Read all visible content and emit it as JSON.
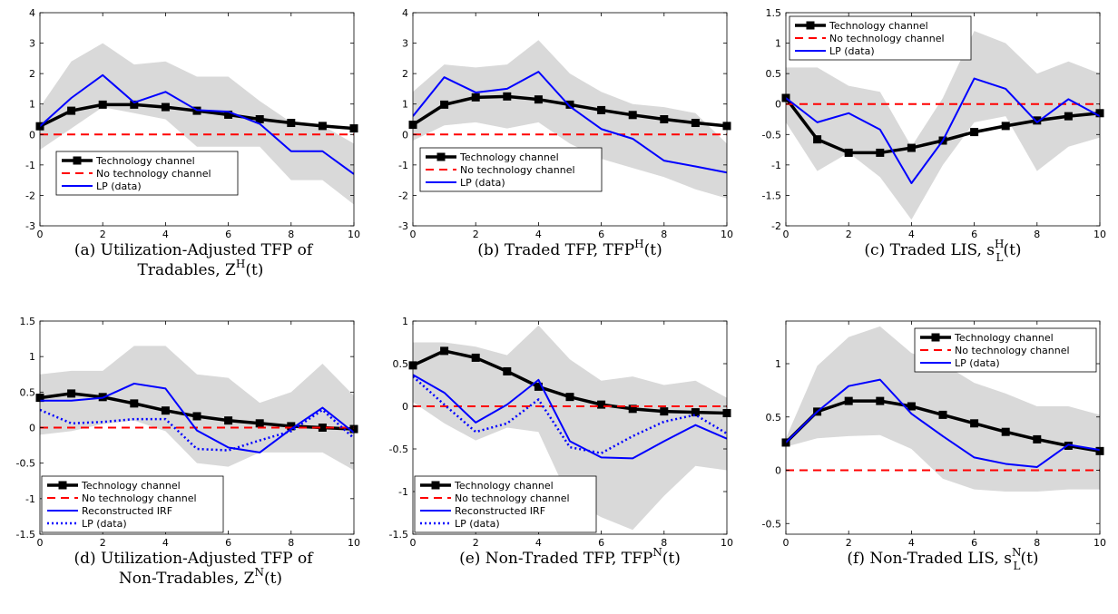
{
  "colors": {
    "technology": "#000000",
    "no_technology": "#ff0000",
    "lp": "#0000ff",
    "band": "#d9d9d9"
  },
  "chart_data": [
    {
      "type": "line",
      "caption": "(a)  Utilization-Adjusted TFP of Tradables, Z^H(t)",
      "caption_lines": [
        "(a)  Utilization-Adjusted TFP of",
        "Tradables, Z",
        "H",
        "(t)"
      ],
      "x": [
        0,
        1,
        2,
        3,
        4,
        5,
        6,
        7,
        8,
        9,
        10
      ],
      "xlim": [
        0,
        10
      ],
      "ylim": [
        -3,
        4
      ],
      "xticks": [
        0,
        2,
        4,
        6,
        8,
        10
      ],
      "yticks": [
        -3,
        -2,
        -1,
        0,
        1,
        2,
        3,
        4
      ],
      "xticklabels": [
        "0",
        "2",
        "4",
        "6",
        "8",
        "10"
      ],
      "yticklabels": [
        "-3",
        "-2",
        "-1",
        "0",
        "1",
        "2",
        "3",
        "4"
      ],
      "band": {
        "lower": [
          -0.5,
          0.2,
          0.9,
          0.7,
          0.5,
          -0.4,
          -0.4,
          -0.4,
          -1.5,
          -1.5,
          -2.3
        ],
        "upper": [
          0.9,
          2.4,
          3.0,
          2.3,
          2.4,
          1.9,
          1.9,
          1.1,
          0.4,
          0.3,
          -0.3
        ]
      },
      "legend_position": "bottom-left",
      "series": [
        {
          "name": "Technology channel",
          "style": "technology",
          "values": [
            0.27,
            0.78,
            0.98,
            0.98,
            0.9,
            0.78,
            0.65,
            0.5,
            0.38,
            0.28,
            0.2
          ]
        },
        {
          "name": "No technology channel",
          "style": "no_technology",
          "values": [
            0,
            0,
            0,
            0,
            0,
            0,
            0,
            0,
            0,
            0,
            0
          ]
        },
        {
          "name": "LP (data)",
          "style": "lp",
          "values": [
            0.27,
            1.2,
            1.95,
            1.05,
            1.4,
            0.8,
            0.75,
            0.35,
            -0.55,
            -0.55,
            -1.3
          ]
        }
      ]
    },
    {
      "type": "line",
      "caption": "(b)  Traded TFP, TFP^H(t)",
      "caption_lines": [
        "(b)  Traded TFP, TFP",
        "H",
        "(t)"
      ],
      "x": [
        0,
        1,
        2,
        3,
        4,
        5,
        6,
        7,
        8,
        9,
        10
      ],
      "xlim": [
        0,
        10
      ],
      "ylim": [
        -3,
        4
      ],
      "xticks": [
        0,
        2,
        4,
        6,
        8,
        10
      ],
      "yticks": [
        -3,
        -2,
        -1,
        0,
        1,
        2,
        3,
        4
      ],
      "xticklabels": [
        "0",
        "2",
        "4",
        "6",
        "8",
        "10"
      ],
      "yticklabels": [
        "-3",
        "-2",
        "-1",
        "0",
        "1",
        "2",
        "3",
        "4"
      ],
      "band": {
        "lower": [
          -0.2,
          0.3,
          0.4,
          0.2,
          0.4,
          -0.3,
          -0.8,
          -1.1,
          -1.4,
          -1.8,
          -2.1
        ],
        "upper": [
          1.4,
          2.3,
          2.2,
          2.3,
          3.1,
          2.0,
          1.4,
          1.0,
          0.9,
          0.7,
          -0.3
        ]
      },
      "legend_position": "bottom-left",
      "series": [
        {
          "name": "Technology channel",
          "style": "technology",
          "values": [
            0.32,
            0.98,
            1.22,
            1.25,
            1.15,
            0.98,
            0.8,
            0.64,
            0.5,
            0.38,
            0.28
          ]
        },
        {
          "name": "No technology channel",
          "style": "no_technology",
          "values": [
            0,
            0,
            0,
            0,
            0,
            0,
            0,
            0,
            0,
            0,
            0
          ]
        },
        {
          "name": "LP (data)",
          "style": "lp",
          "values": [
            0.6,
            1.88,
            1.38,
            1.5,
            2.06,
            0.92,
            0.18,
            -0.14,
            -0.86,
            -1.05,
            -1.25
          ]
        }
      ]
    },
    {
      "type": "line",
      "caption": "(c)  Traded LIS, s_L^H(t)",
      "caption_lines": [
        "(c)  Traded LIS, s",
        "H",
        "L",
        "(t)"
      ],
      "x": [
        0,
        1,
        2,
        3,
        4,
        5,
        6,
        7,
        8,
        9,
        10
      ],
      "xlim": [
        0,
        10
      ],
      "ylim": [
        -2,
        1.5
      ],
      "xticks": [
        0,
        2,
        4,
        6,
        8,
        10
      ],
      "yticks": [
        -2,
        -1.5,
        -1,
        -0.5,
        0,
        0.5,
        1,
        1.5
      ],
      "xticklabels": [
        "0",
        "2",
        "4",
        "6",
        "8",
        "10"
      ],
      "yticklabels": [
        "-2",
        "-1.5",
        "-1",
        "-0.5",
        "0",
        "0.5",
        "1",
        "1.5"
      ],
      "band": {
        "lower": [
          -0.3,
          -1.1,
          -0.8,
          -1.2,
          -1.9,
          -1.0,
          -0.3,
          -0.2,
          -1.1,
          -0.7,
          -0.55
        ],
        "upper": [
          0.6,
          0.6,
          0.3,
          0.2,
          -0.7,
          0.1,
          1.2,
          1.0,
          0.5,
          0.7,
          0.5
        ]
      },
      "legend_position": "top-left",
      "series": [
        {
          "name": "Technology channel",
          "style": "technology",
          "values": [
            0.1,
            -0.58,
            -0.8,
            -0.8,
            -0.72,
            -0.6,
            -0.46,
            -0.36,
            -0.27,
            -0.2,
            -0.15
          ]
        },
        {
          "name": "No technology channel",
          "style": "no_technology",
          "values": [
            0,
            0,
            0,
            0,
            0,
            0,
            0,
            0,
            0,
            0,
            0
          ]
        },
        {
          "name": "LP (data)",
          "style": "lp",
          "values": [
            0.1,
            -0.3,
            -0.15,
            -0.42,
            -1.3,
            -0.6,
            0.42,
            0.25,
            -0.3,
            0.08,
            -0.2
          ]
        }
      ]
    },
    {
      "type": "line",
      "caption": "(d)  Utilization-Adjusted TFP of Non-Tradables, Z^N(t)",
      "caption_lines": [
        "(d)  Utilization-Adjusted TFP of",
        "Non-Tradables, Z",
        "N",
        "(t)"
      ],
      "x": [
        0,
        1,
        2,
        3,
        4,
        5,
        6,
        7,
        8,
        9,
        10
      ],
      "xlim": [
        0,
        10
      ],
      "ylim": [
        -1.5,
        1.5
      ],
      "xticks": [
        0,
        2,
        4,
        6,
        8,
        10
      ],
      "yticks": [
        -1.5,
        -1,
        -0.5,
        0,
        0.5,
        1,
        1.5
      ],
      "xticklabels": [
        "0",
        "2",
        "4",
        "6",
        "8",
        "10"
      ],
      "yticklabels": [
        "-1.5",
        "-1",
        "-0.5",
        "0",
        "0.5",
        "1",
        "1.5"
      ],
      "band": {
        "lower": [
          -0.1,
          -0.05,
          0.05,
          0.1,
          -0.05,
          -0.5,
          -0.55,
          -0.35,
          -0.35,
          -0.35,
          -0.6
        ],
        "upper": [
          0.75,
          0.8,
          0.8,
          1.15,
          1.15,
          0.75,
          0.7,
          0.35,
          0.5,
          0.9,
          0.45
        ]
      },
      "legend_position": "bottom-left",
      "series": [
        {
          "name": "Technology channel",
          "style": "technology",
          "values": [
            0.42,
            0.48,
            0.43,
            0.34,
            0.24,
            0.16,
            0.1,
            0.06,
            0.02,
            0.0,
            -0.02
          ]
        },
        {
          "name": "No technology channel",
          "style": "no_technology",
          "values": [
            0,
            0,
            0,
            0,
            0,
            0,
            0,
            0,
            0,
            0,
            0
          ]
        },
        {
          "name": "Reconstructed IRF",
          "style": "lp",
          "values": [
            0.38,
            0.38,
            0.42,
            0.62,
            0.55,
            -0.04,
            -0.28,
            -0.35,
            -0.02,
            0.28,
            -0.07
          ]
        },
        {
          "name": "LP (data)",
          "style": "lp_dotted",
          "values": [
            0.25,
            0.06,
            0.08,
            0.12,
            0.12,
            -0.3,
            -0.32,
            -0.18,
            -0.05,
            0.25,
            -0.15
          ]
        }
      ]
    },
    {
      "type": "line",
      "caption": "(e)  Non-Traded TFP, TFP^N(t)",
      "caption_lines": [
        "(e)  Non-Traded TFP, TFP",
        "N",
        "(t)"
      ],
      "x": [
        0,
        1,
        2,
        3,
        4,
        5,
        6,
        7,
        8,
        9,
        10
      ],
      "xlim": [
        0,
        10
      ],
      "ylim": [
        -1.5,
        1
      ],
      "xticks": [
        0,
        2,
        4,
        6,
        8,
        10
      ],
      "yticks": [
        -1.5,
        -1,
        -0.5,
        0,
        0.5,
        1
      ],
      "xticklabels": [
        "0",
        "2",
        "4",
        "6",
        "8",
        "10"
      ],
      "yticklabels": [
        "-1.5",
        "-1",
        "-0.5",
        "0",
        "0.5",
        "1"
      ],
      "band": {
        "lower": [
          0.05,
          -0.2,
          -0.4,
          -0.25,
          -0.3,
          -1.1,
          -1.3,
          -1.45,
          -1.05,
          -0.7,
          -0.75
        ],
        "upper": [
          0.75,
          0.75,
          0.7,
          0.6,
          0.95,
          0.55,
          0.3,
          0.35,
          0.25,
          0.3,
          0.1
        ]
      },
      "legend_position": "bottom-left",
      "series": [
        {
          "name": "Technology channel",
          "style": "technology",
          "values": [
            0.48,
            0.65,
            0.57,
            0.41,
            0.23,
            0.11,
            0.02,
            -0.03,
            -0.06,
            -0.07,
            -0.08
          ]
        },
        {
          "name": "No technology channel",
          "style": "no_technology",
          "values": [
            0,
            0,
            0,
            0,
            0,
            0,
            0,
            0,
            0,
            0,
            0
          ]
        },
        {
          "name": "Reconstructed IRF",
          "style": "lp",
          "values": [
            0.37,
            0.16,
            -0.19,
            0.02,
            0.31,
            -0.41,
            -0.6,
            -0.61,
            -0.41,
            -0.22,
            -0.38
          ]
        },
        {
          "name": "LP (data)",
          "style": "lp_dotted",
          "values": [
            0.35,
            0.02,
            -0.3,
            -0.2,
            0.08,
            -0.48,
            -0.55,
            -0.35,
            -0.18,
            -0.1,
            -0.32
          ]
        }
      ]
    },
    {
      "type": "line",
      "caption": "(f)  Non-Traded LIS, s_L^N(t)",
      "caption_lines": [
        "(f)  Non-Traded LIS, s",
        "N",
        "L",
        "(t)"
      ],
      "x": [
        0,
        1,
        2,
        3,
        4,
        5,
        6,
        7,
        8,
        9,
        10
      ],
      "xlim": [
        0,
        10
      ],
      "ylim": [
        -0.6,
        1.4
      ],
      "xticks": [
        0,
        2,
        4,
        6,
        8,
        10
      ],
      "yticks": [
        -0.5,
        0,
        0.5,
        1
      ],
      "xticklabels": [
        "0",
        "2",
        "4",
        "6",
        "8",
        "10"
      ],
      "yticklabels": [
        "-0.5",
        "0",
        "0.5",
        "1"
      ],
      "band": {
        "lower": [
          0.22,
          0.3,
          0.32,
          0.33,
          0.2,
          -0.08,
          -0.18,
          -0.2,
          -0.2,
          -0.18,
          -0.18
        ],
        "upper": [
          0.3,
          0.98,
          1.25,
          1.35,
          1.1,
          1.0,
          0.82,
          0.72,
          0.6,
          0.6,
          0.52
        ]
      },
      "legend_position": "top-right",
      "series": [
        {
          "name": "Technology channel",
          "style": "technology",
          "values": [
            0.26,
            0.55,
            0.65,
            0.65,
            0.6,
            0.52,
            0.44,
            0.36,
            0.29,
            0.23,
            0.18
          ]
        },
        {
          "name": "No technology channel",
          "style": "no_technology",
          "values": [
            0,
            0,
            0,
            0,
            0,
            0,
            0,
            0,
            0,
            0,
            0
          ]
        },
        {
          "name": "LP (data)",
          "style": "lp",
          "values": [
            0.26,
            0.55,
            0.79,
            0.85,
            0.53,
            0.32,
            0.12,
            0.06,
            0.03,
            0.24,
            0.19
          ]
        }
      ]
    }
  ]
}
